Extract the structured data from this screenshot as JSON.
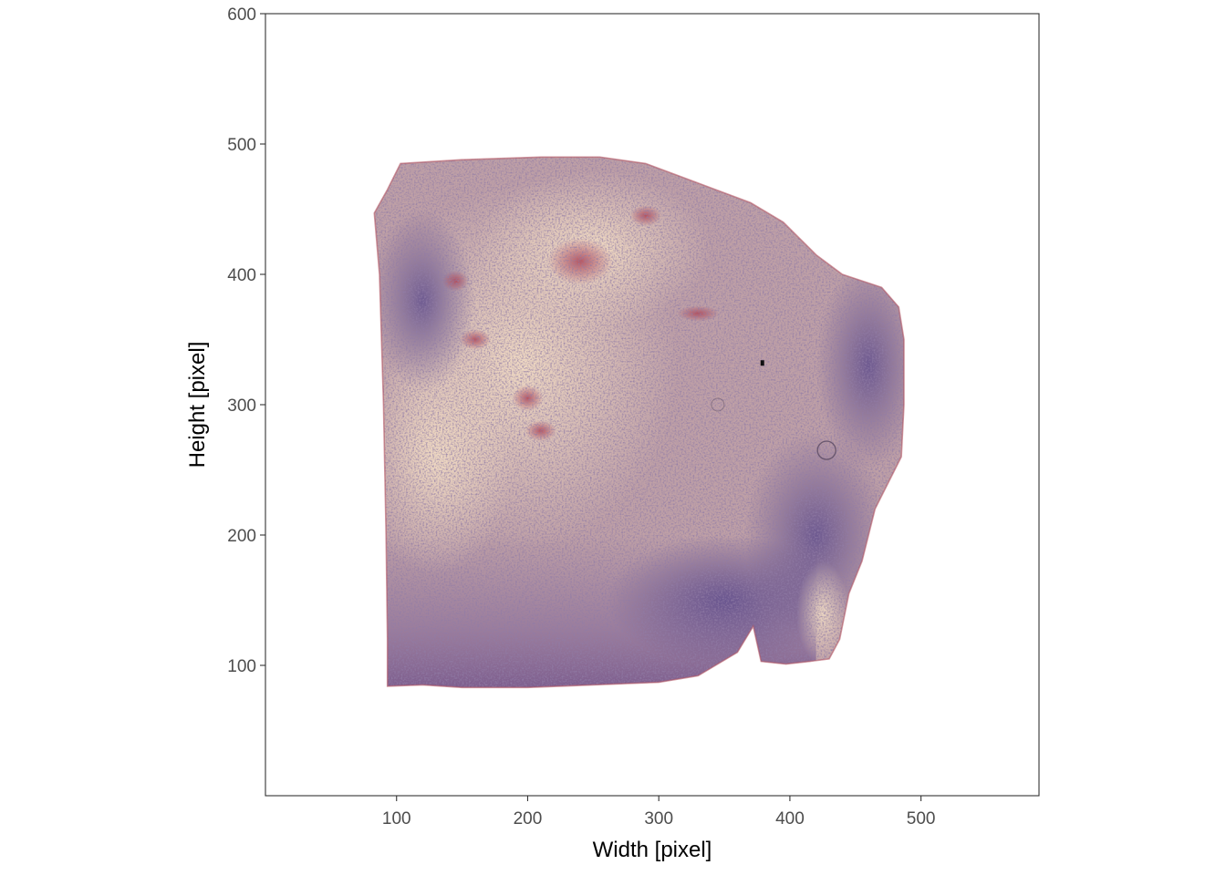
{
  "chart_data": {
    "type": "image",
    "title": "",
    "xlabel": "Width [pixel]",
    "ylabel": "Height [pixel]",
    "xlim": [
      0,
      590
    ],
    "ylim": [
      0,
      600
    ],
    "x_ticks": [
      100,
      200,
      300,
      400,
      500
    ],
    "y_ticks": [
      100,
      200,
      300,
      400,
      500,
      600
    ],
    "grid": false,
    "legend": "none",
    "image_content": "H&E-stained tissue section",
    "tissue_outline": [
      [
        93,
        84
      ],
      [
        93,
        120
      ],
      [
        92,
        200
      ],
      [
        90,
        300
      ],
      [
        87,
        400
      ],
      [
        83,
        447
      ],
      [
        93,
        465
      ],
      [
        103,
        485
      ],
      [
        150,
        488
      ],
      [
        210,
        490
      ],
      [
        255,
        490
      ],
      [
        290,
        485
      ],
      [
        330,
        470
      ],
      [
        370,
        455
      ],
      [
        395,
        440
      ],
      [
        420,
        415
      ],
      [
        440,
        400
      ],
      [
        470,
        390
      ],
      [
        483,
        375
      ],
      [
        487,
        350
      ],
      [
        487,
        300
      ],
      [
        485,
        260
      ],
      [
        465,
        220
      ],
      [
        455,
        180
      ],
      [
        445,
        155
      ],
      [
        438,
        120
      ],
      [
        430,
        105
      ],
      [
        415,
        103
      ],
      [
        397,
        101
      ],
      [
        378,
        103
      ],
      [
        372,
        130
      ],
      [
        360,
        110
      ],
      [
        330,
        92
      ],
      [
        300,
        87
      ],
      [
        250,
        85
      ],
      [
        200,
        83
      ],
      [
        150,
        83
      ],
      [
        120,
        85
      ],
      [
        93,
        84
      ]
    ],
    "colors": {
      "tissue_light": "#e8cdb4",
      "tissue_mid": "#bfa0a6",
      "tissue_purple": "#7a5f92",
      "stain_red": "#b45664",
      "edge_dark": "#3c2347",
      "axis": "#333333"
    }
  }
}
